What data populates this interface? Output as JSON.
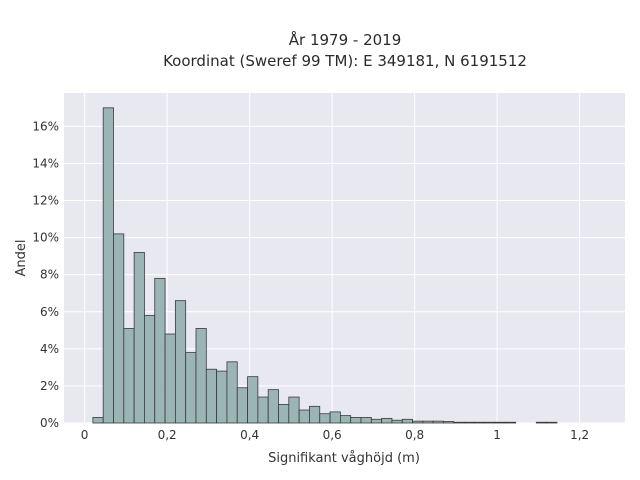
{
  "chart_data": {
    "type": "bar",
    "title_line1": "År 1979 - 2019",
    "title_line2": "Koordinat (Sweref 99 TM): E 349181, N 6191512",
    "xlabel": "Signifikant våghöjd (m)",
    "ylabel": "Andel",
    "xlim": [
      -0.05,
      1.31
    ],
    "ylim": [
      0,
      0.178
    ],
    "x_ticks": [
      0,
      0.2,
      0.4,
      0.6,
      0.8,
      1,
      1.2
    ],
    "x_tick_labels": [
      "0",
      "0,2",
      "0,4",
      "0,6",
      "0,8",
      "1",
      "1,2"
    ],
    "y_ticks": [
      0,
      0.02,
      0.04,
      0.06,
      0.08,
      0.1,
      0.12,
      0.14,
      0.16
    ],
    "y_tick_labels": [
      "0%",
      "2%",
      "4%",
      "6%",
      "8%",
      "10%",
      "12%",
      "14%",
      "16%"
    ],
    "bin_width": 0.025,
    "bin_starts": [
      0.02,
      0.045,
      0.07,
      0.095,
      0.12,
      0.145,
      0.17,
      0.195,
      0.22,
      0.245,
      0.27,
      0.295,
      0.32,
      0.345,
      0.37,
      0.395,
      0.42,
      0.445,
      0.47,
      0.495,
      0.52,
      0.545,
      0.57,
      0.595,
      0.62,
      0.645,
      0.67,
      0.695,
      0.72,
      0.745,
      0.77,
      0.795,
      0.82,
      0.845,
      0.87,
      0.895,
      0.92,
      0.945,
      0.97,
      0.995,
      1.02,
      1.045,
      1.07,
      1.095,
      1.12
    ],
    "values": [
      0.003,
      0.17,
      0.102,
      0.051,
      0.092,
      0.058,
      0.078,
      0.048,
      0.066,
      0.038,
      0.051,
      0.029,
      0.028,
      0.033,
      0.019,
      0.025,
      0.014,
      0.018,
      0.01,
      0.014,
      0.007,
      0.009,
      0.005,
      0.006,
      0.004,
      0.003,
      0.003,
      0.002,
      0.0025,
      0.0015,
      0.002,
      0.001,
      0.001,
      0.001,
      0.0008,
      0.0004,
      0.0004,
      0.0004,
      0.0004,
      0.0004,
      0.0004,
      0.0,
      0.0,
      0.0004,
      0.0004
    ],
    "grid": true
  },
  "colors": {
    "plot_background": "#e8e8f0",
    "bar_fill": "#9bb4b4",
    "bar_edge": "#3a3a3a"
  }
}
